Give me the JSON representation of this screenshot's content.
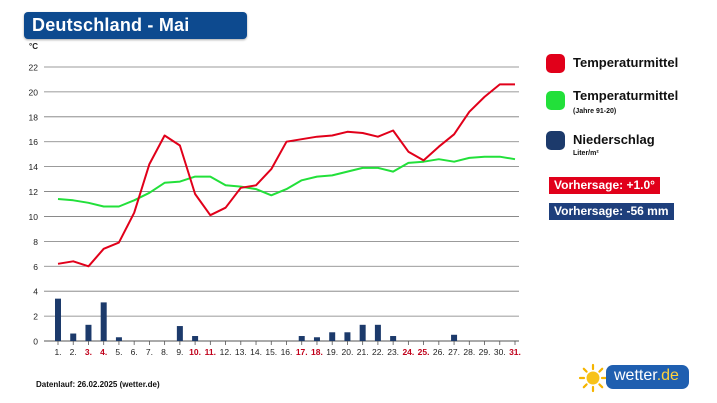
{
  "header": {
    "title": "Deutschland - Mai"
  },
  "legend": {
    "items": [
      {
        "label": "Temperaturmittel",
        "sub": "",
        "color": "#e1001a",
        "icon": "red-square-icon"
      },
      {
        "label": "Temperaturmittel",
        "sub": "(Jahre 91-20)",
        "color": "#22e03a",
        "icon": "green-square-icon"
      },
      {
        "label": "Niederschlag",
        "sub": "Liter/m²",
        "color": "#1c3a6b",
        "icon": "navy-square-icon"
      }
    ]
  },
  "forecast": {
    "temp": "Vorhersage: +1.0°",
    "precip": "Vorhersage: -56 mm",
    "temp_color": "#e1001a",
    "precip_color": "#1e3f7c"
  },
  "footer": {
    "text": "Datenlauf: 26.02.2025 (wetter.de)"
  },
  "logo": {
    "text": "wetter",
    "suffix": ".de",
    "icon": "sun-icon"
  },
  "chart_data": {
    "type": "line",
    "y_unit": "°C",
    "ylim": [
      0,
      22
    ],
    "yticks": [
      0,
      2,
      4,
      6,
      8,
      10,
      12,
      14,
      16,
      18,
      20,
      22
    ],
    "grid": true,
    "x": [
      "1.",
      "2.",
      "3.",
      "4.",
      "5.",
      "6.",
      "7.",
      "8.",
      "9.",
      "10.",
      "11.",
      "12.",
      "13.",
      "14.",
      "15.",
      "16.",
      "17.",
      "18.",
      "19.",
      "20.",
      "21.",
      "22.",
      "23.",
      "24.",
      "25.",
      "26.",
      "27.",
      "28.",
      "29.",
      "30.",
      "31."
    ],
    "highlighted_days": [
      "3.",
      "4.",
      "10.",
      "11.",
      "17.",
      "18.",
      "24.",
      "25.",
      "31."
    ],
    "series": [
      {
        "name": "Temperaturmittel",
        "type": "line",
        "color": "#e1001a",
        "values": [
          6.2,
          6.4,
          6.0,
          7.4,
          7.9,
          10.3,
          14.2,
          16.5,
          15.7,
          11.8,
          10.1,
          10.7,
          12.3,
          12.5,
          13.8,
          16.0,
          16.2,
          16.4,
          16.5,
          16.8,
          16.7,
          16.4,
          16.9,
          15.2,
          14.5,
          15.6,
          16.6,
          18.4,
          19.6,
          20.6,
          20.6
        ]
      },
      {
        "name": "Temperaturmittel (Jahre 91-20)",
        "type": "line",
        "color": "#22e03a",
        "values": [
          11.4,
          11.3,
          11.1,
          10.8,
          10.8,
          11.3,
          11.9,
          12.7,
          12.8,
          13.2,
          13.2,
          12.5,
          12.4,
          12.2,
          11.7,
          12.2,
          12.9,
          13.2,
          13.3,
          13.6,
          13.9,
          13.9,
          13.6,
          14.3,
          14.4,
          14.6,
          14.4,
          14.7,
          14.8,
          14.8,
          14.6
        ]
      },
      {
        "name": "Niederschlag",
        "type": "bar",
        "color": "#1c3a6b",
        "values": [
          3.4,
          0.6,
          1.3,
          3.1,
          0.3,
          0,
          0,
          0,
          1.2,
          0.4,
          0,
          0,
          0,
          0,
          0,
          0,
          0.4,
          0.3,
          0.7,
          0.7,
          1.3,
          1.3,
          0.4,
          0,
          0,
          0,
          0.5,
          0,
          0,
          0,
          0
        ]
      }
    ]
  }
}
